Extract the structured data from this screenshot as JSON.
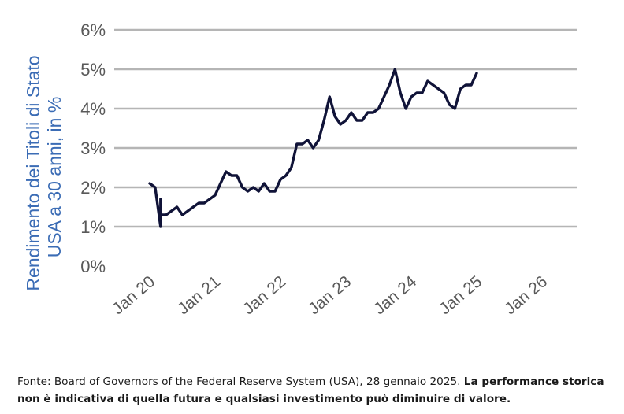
{
  "chart_data": {
    "type": "line",
    "ylabel_line1": "Rendimento dei Titoli di Stato",
    "ylabel_line2": "USA a 30 anni, in %",
    "ylim": [
      0,
      6
    ],
    "yticks": [
      0,
      1,
      2,
      3,
      4,
      5,
      6
    ],
    "ytick_labels": [
      "0%",
      "1%",
      "2%",
      "3%",
      "4%",
      "5%",
      "6%"
    ],
    "xlim": [
      2020,
      2026
    ],
    "xticks": [
      2020,
      2021,
      2022,
      2023,
      2024,
      2025,
      2026
    ],
    "xtick_labels": [
      "Jan 20",
      "Jan 21",
      "Jan 22",
      "Jan 23",
      "Jan 24",
      "Jan 25",
      "Jan 26"
    ],
    "grid": "horizontal",
    "series": [
      {
        "color": "#101338",
        "x": [
          "2020-01",
          "2020-02",
          "2020-03",
          "2020-03",
          "2020-03",
          "2020-04",
          "2020-05",
          "2020-06",
          "2020-07",
          "2020-08",
          "2020-09",
          "2020-10",
          "2020-11",
          "2020-12",
          "2021-01",
          "2021-02",
          "2021-03",
          "2021-04",
          "2021-05",
          "2021-06",
          "2021-07",
          "2021-08",
          "2021-09",
          "2021-10",
          "2021-11",
          "2021-12",
          "2022-01",
          "2022-02",
          "2022-03",
          "2022-04",
          "2022-05",
          "2022-06",
          "2022-07",
          "2022-08",
          "2022-09",
          "2022-10",
          "2022-11",
          "2022-12",
          "2023-01",
          "2023-02",
          "2023-03",
          "2023-04",
          "2023-05",
          "2023-06",
          "2023-07",
          "2023-08",
          "2023-09",
          "2023-10",
          "2023-11",
          "2023-12",
          "2024-01",
          "2024-02",
          "2024-03",
          "2024-04",
          "2024-05",
          "2024-06",
          "2024-07",
          "2024-08",
          "2024-09",
          "2024-10",
          "2024-11",
          "2024-12",
          "2025-01"
        ],
        "y": [
          2.1,
          2.0,
          1.0,
          1.7,
          1.3,
          1.3,
          1.4,
          1.5,
          1.3,
          1.4,
          1.5,
          1.6,
          1.6,
          1.7,
          1.8,
          2.1,
          2.4,
          2.3,
          2.3,
          2.0,
          1.9,
          2.0,
          1.9,
          2.1,
          1.9,
          1.9,
          2.2,
          2.3,
          2.5,
          3.1,
          3.1,
          3.2,
          3.0,
          3.2,
          3.7,
          4.3,
          3.8,
          3.6,
          3.7,
          3.9,
          3.7,
          3.7,
          3.9,
          3.9,
          4.0,
          4.3,
          4.6,
          5.0,
          4.4,
          4.0,
          4.3,
          4.4,
          4.4,
          4.7,
          4.6,
          4.5,
          4.4,
          4.1,
          4.0,
          4.5,
          4.6,
          4.6,
          4.9
        ]
      }
    ]
  },
  "footnote": {
    "source": "Fonte: Board of Governors of the Federal Reserve System (USA), 28 gennaio 2025. ",
    "disclaimer": "La performance storica non è indicativa di quella futura e qualsiasi investimento può diminuire di valore."
  }
}
